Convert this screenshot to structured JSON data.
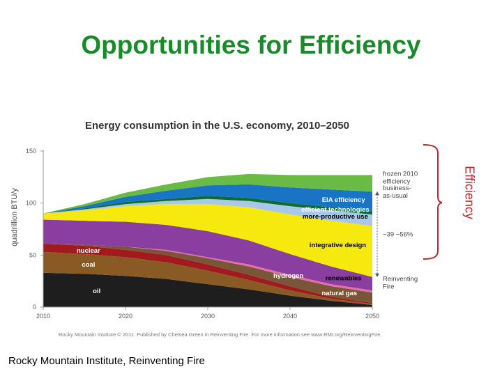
{
  "slide": {
    "title": "Opportunities for Efficiency",
    "source": "Rocky Mountain Institute, Reinventing Fire",
    "efficiency_label": "Efficiency",
    "accent_color": "#c0262d"
  },
  "chart_data": {
    "type": "area",
    "title": "Energy consumption in the U.S. economy, 2010–2050",
    "ylabel": "quadrillion BTU/y",
    "xlabel": "",
    "x": [
      2010,
      2015,
      2020,
      2025,
      2030,
      2035,
      2040,
      2045,
      2050
    ],
    "xticks": [
      2010,
      2020,
      2030,
      2040,
      2050
    ],
    "yticks": [
      0,
      50,
      100,
      150
    ],
    "xlim": [
      2010,
      2050
    ],
    "ylim": [
      0,
      150
    ],
    "series": [
      {
        "name": "oil",
        "color": "#1e1e1e",
        "text_color": "#ffffff",
        "values": [
          33,
          32,
          30,
          27,
          22,
          17,
          11,
          6,
          2
        ]
      },
      {
        "name": "coal",
        "color": "#8a5a24",
        "text_color": "#ffffff",
        "values": [
          20,
          19,
          18,
          16,
          13,
          9,
          5,
          2,
          1
        ]
      },
      {
        "name": "nuclear",
        "color": "#a01a1e",
        "text_color": "#ffffff",
        "values": [
          8,
          8,
          7,
          7,
          6,
          5,
          4,
          2,
          1
        ]
      },
      {
        "name": "natural gas",
        "color": "#7a5638",
        "text_color": "#ffffff",
        "values": [
          0,
          1,
          3,
          4,
          6,
          8,
          9,
          10,
          10
        ]
      },
      {
        "name": "hydrogen",
        "color": "#e66ea6",
        "text_color": "#ffffff",
        "values": [
          0,
          0,
          0,
          1,
          1,
          2,
          2,
          2,
          2
        ]
      },
      {
        "name": "renewables",
        "color": "#8a3ea0",
        "text_color": "#000000",
        "values": [
          23,
          23,
          24,
          24,
          25,
          23,
          20,
          17,
          13
        ]
      },
      {
        "name": "integrative design",
        "color": "#f5e90e",
        "text_color": "#000000",
        "values": [
          6,
          10,
          15,
          20,
          26,
          32,
          38,
          44,
          49
        ]
      },
      {
        "name": "more-productive use",
        "color": "#a9c7e6",
        "text_color": "#000000",
        "values": [
          0,
          1,
          2,
          3,
          5,
          6,
          8,
          10,
          11
        ]
      },
      {
        "name": "efficient technologies",
        "color": "#0e6c30",
        "text_color": "#ffffff",
        "values": [
          0,
          1,
          2,
          2,
          3,
          3,
          3,
          3,
          3
        ]
      },
      {
        "name": "EIA efficiency",
        "color": "#1a74c4",
        "text_color": "#ffffff",
        "values": [
          0,
          2,
          5,
          8,
          10,
          13,
          15,
          17,
          19
        ]
      },
      {
        "name": "frozen 2010 efficiency",
        "color": "#6abb45",
        "text_color": "#ffffff",
        "values": [
          0,
          2,
          4,
          6,
          8,
          10,
          12,
          14,
          16
        ]
      }
    ],
    "labels": [
      {
        "text": "oil",
        "series": "oil",
        "x": 2016.5
      },
      {
        "text": "coal",
        "series": "coal",
        "x": 2015.5
      },
      {
        "text": "nuclear",
        "series": "nuclear",
        "x": 2015.5
      },
      {
        "text": "natural gas",
        "series": "natural gas",
        "x": 2046
      },
      {
        "text": "hydrogen",
        "series": "hydrogen",
        "x": 2039.8
      },
      {
        "text": "renewables",
        "series": "renewables",
        "x": 2046.5
      },
      {
        "text": "integrative design",
        "series": "integrative design",
        "x": 2045.8
      },
      {
        "text": "more-productive use",
        "series": "more-productive use",
        "x": 2045.5
      },
      {
        "text": "efficient technologies",
        "series": "efficient technologies",
        "x": 2045.5
      },
      {
        "text": "EIA efficiency",
        "series": "EIA efficiency",
        "x": 2046.5
      }
    ],
    "right_annotations": {
      "frozen": [
        "frozen 2010",
        "efficiency"
      ],
      "bau": [
        "business-",
        "as-usual"
      ],
      "range": "−39 −56%",
      "reinventing": [
        "Reinventing",
        "Fire"
      ]
    },
    "credit": "Rocky Mountain Institute © 2011. Published by Chelsea Green in Reinventing Fire. For more information see www.RMI.org/ReinventingFire."
  }
}
